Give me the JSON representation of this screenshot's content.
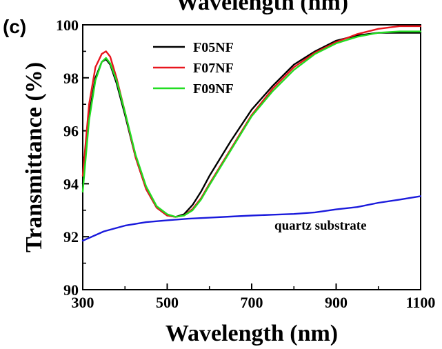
{
  "chart_data": {
    "type": "line",
    "panel_label": "(c)",
    "top_label": "Wavelength (nm)",
    "xlabel": "Wavelength (nm)",
    "ylabel": "Transmittance (%)",
    "xlim": [
      300,
      1100
    ],
    "ylim": [
      90,
      100
    ],
    "xticks": [
      300,
      500,
      700,
      900,
      1100
    ],
    "yticks": [
      90,
      92,
      94,
      96,
      98,
      100
    ],
    "legend_position": "top-left",
    "annotation": "quartz substrate",
    "series": [
      {
        "name": "F05NF",
        "color": "#000000",
        "x": [
          300,
          315,
          330,
          345,
          355,
          365,
          380,
          400,
          425,
          450,
          475,
          500,
          520,
          540,
          560,
          580,
          600,
          650,
          700,
          750,
          800,
          850,
          900,
          950,
          1000,
          1050,
          1100
        ],
        "y": [
          94.0,
          96.6,
          98.0,
          98.6,
          98.7,
          98.5,
          97.8,
          96.6,
          95.0,
          93.8,
          93.1,
          92.8,
          92.75,
          92.85,
          93.2,
          93.7,
          94.3,
          95.6,
          96.8,
          97.7,
          98.5,
          99.0,
          99.4,
          99.6,
          99.7,
          99.7,
          99.7
        ]
      },
      {
        "name": "F07NF",
        "color": "#e8161e",
        "x": [
          300,
          315,
          330,
          345,
          355,
          365,
          380,
          400,
          425,
          450,
          475,
          500,
          520,
          540,
          560,
          580,
          600,
          650,
          700,
          750,
          800,
          850,
          900,
          950,
          1000,
          1050,
          1100
        ],
        "y": [
          94.3,
          97.0,
          98.4,
          98.9,
          99.0,
          98.8,
          98.0,
          96.7,
          95.0,
          93.8,
          93.1,
          92.8,
          92.75,
          92.8,
          93.05,
          93.45,
          94.0,
          95.3,
          96.6,
          97.6,
          98.4,
          98.95,
          99.35,
          99.65,
          99.85,
          99.95,
          99.95
        ]
      },
      {
        "name": "F09NF",
        "color": "#22dd22",
        "x": [
          300,
          315,
          330,
          345,
          355,
          365,
          380,
          400,
          425,
          450,
          475,
          500,
          520,
          540,
          560,
          580,
          600,
          650,
          700,
          750,
          800,
          850,
          900,
          950,
          1000,
          1050,
          1100
        ],
        "y": [
          93.7,
          96.4,
          97.9,
          98.6,
          98.75,
          98.55,
          97.9,
          96.7,
          95.1,
          93.9,
          93.15,
          92.85,
          92.75,
          92.8,
          93.0,
          93.4,
          93.95,
          95.25,
          96.55,
          97.5,
          98.3,
          98.9,
          99.3,
          99.55,
          99.7,
          99.75,
          99.75
        ]
      },
      {
        "name": "quartz substrate",
        "color": "#1a1adc",
        "x": [
          300,
          350,
          400,
          450,
          500,
          550,
          600,
          650,
          700,
          750,
          800,
          850,
          900,
          950,
          1000,
          1050,
          1100
        ],
        "y": [
          91.85,
          92.2,
          92.42,
          92.55,
          92.62,
          92.68,
          92.72,
          92.76,
          92.8,
          92.83,
          92.86,
          92.92,
          93.03,
          93.12,
          93.28,
          93.4,
          93.53
        ]
      }
    ]
  }
}
